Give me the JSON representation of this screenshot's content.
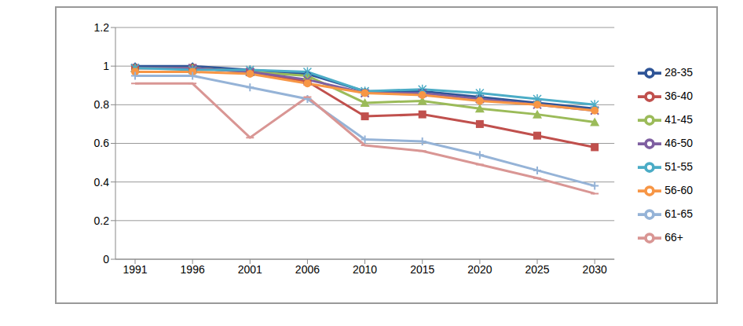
{
  "chart_data": {
    "type": "line",
    "categories": [
      "1991",
      "1996",
      "2001",
      "2006",
      "2010",
      "2015",
      "2020",
      "2025",
      "2030"
    ],
    "ylim": [
      0,
      1.2
    ],
    "yticks": [
      0,
      0.2,
      0.4,
      0.6,
      0.8,
      1,
      1.2
    ],
    "grid": true,
    "legend": "right",
    "series": [
      {
        "name": "28-35",
        "color": "#2f5597",
        "marker": "diamond",
        "values": [
          1,
          1,
          0.98,
          0.96,
          0.87,
          0.87,
          0.84,
          0.81,
          0.78
        ]
      },
      {
        "name": "36-40",
        "color": "#c0504d",
        "marker": "square",
        "values": [
          0.99,
          0.99,
          0.97,
          0.92,
          0.74,
          0.75,
          0.7,
          0.64,
          0.58
        ]
      },
      {
        "name": "41-45",
        "color": "#9bbb59",
        "marker": "triangle",
        "values": [
          0.99,
          0.99,
          0.97,
          0.95,
          0.81,
          0.82,
          0.78,
          0.75,
          0.71
        ]
      },
      {
        "name": "46-50",
        "color": "#7f5fa1",
        "marker": "x",
        "values": [
          0.99,
          0.99,
          0.97,
          0.93,
          0.86,
          0.86,
          0.83,
          0.8,
          0.77
        ]
      },
      {
        "name": "51-55",
        "color": "#4bacc6",
        "marker": "star",
        "values": [
          0.99,
          0.98,
          0.98,
          0.97,
          0.87,
          0.88,
          0.86,
          0.83,
          0.8
        ]
      },
      {
        "name": "56-60",
        "color": "#f79646",
        "marker": "circle",
        "values": [
          0.97,
          0.97,
          0.96,
          0.91,
          0.86,
          0.85,
          0.82,
          0.8,
          0.77
        ]
      },
      {
        "name": "61-65",
        "color": "#95b3d7",
        "marker": "plus",
        "values": [
          0.95,
          0.95,
          0.89,
          0.83,
          0.62,
          0.61,
          0.54,
          0.46,
          0.38
        ]
      },
      {
        "name": "66+",
        "color": "#d99694",
        "marker": "dash",
        "values": [
          0.91,
          0.91,
          0.63,
          0.84,
          0.59,
          0.56,
          0.49,
          0.42,
          0.34
        ]
      }
    ]
  }
}
